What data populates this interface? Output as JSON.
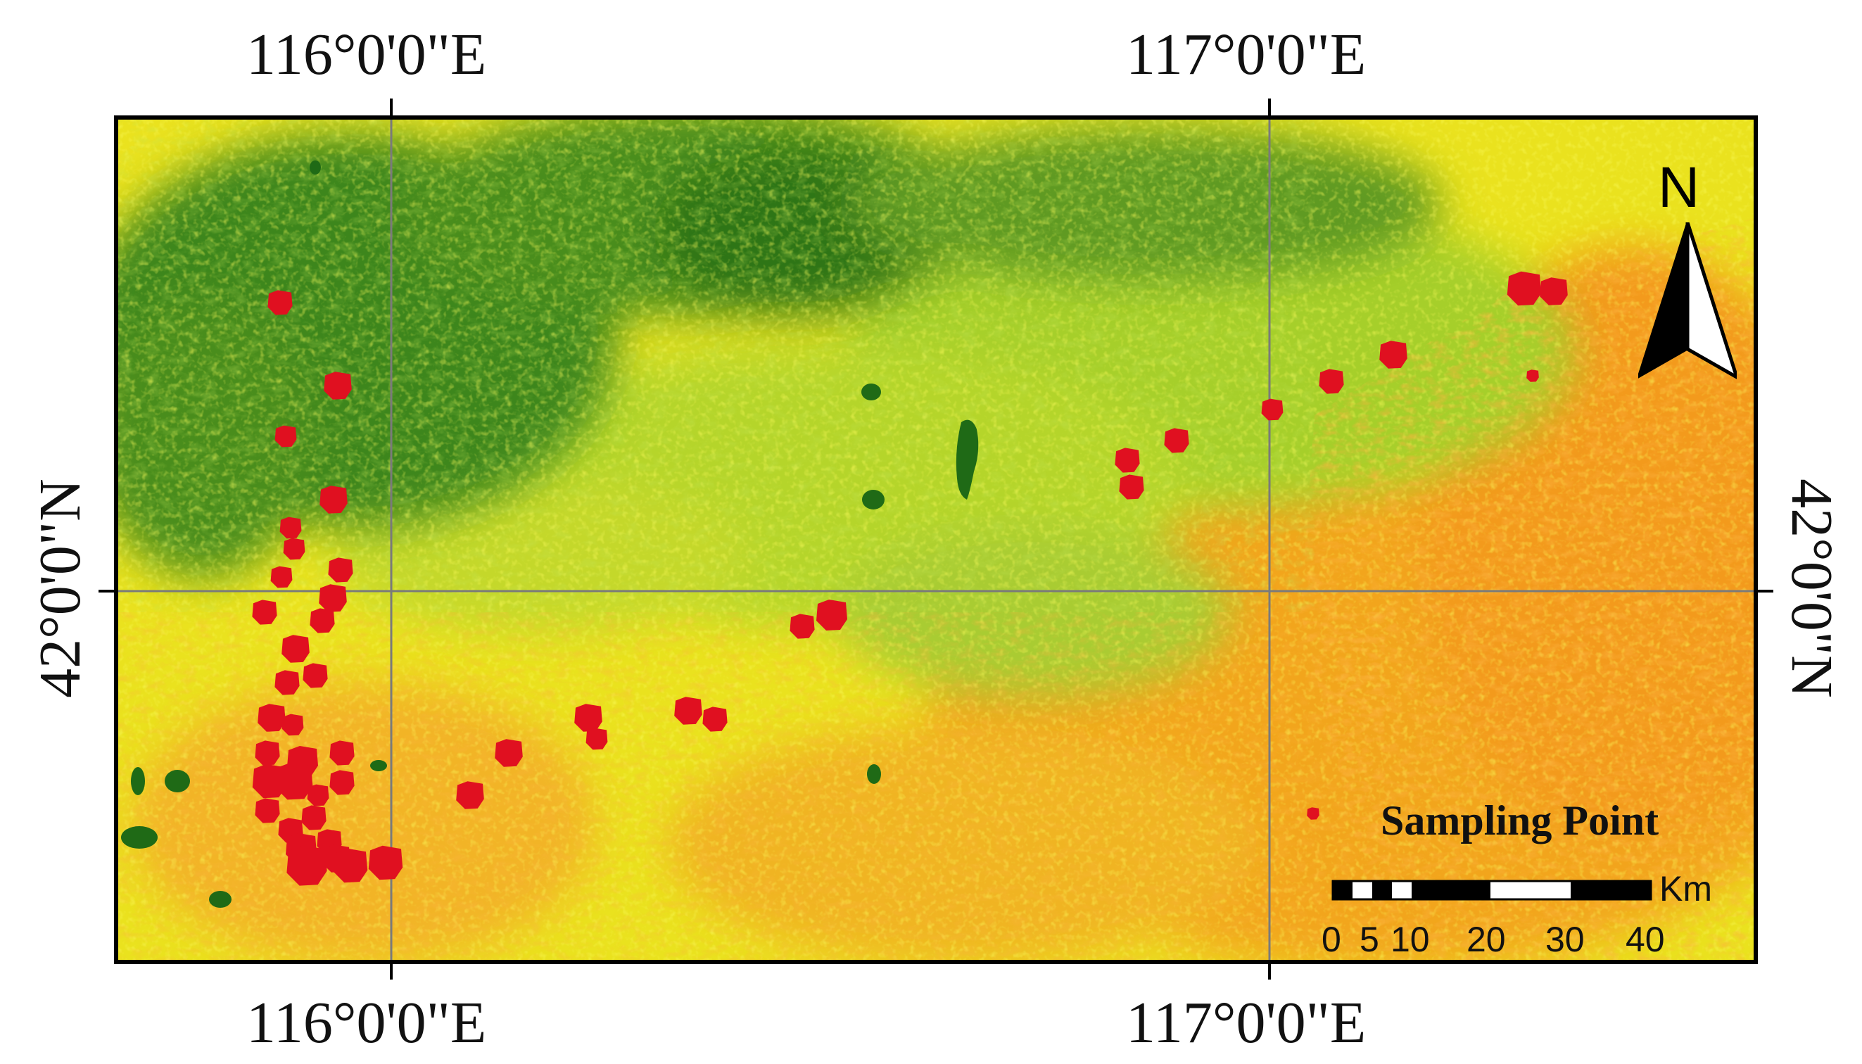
{
  "longitude_labels": {
    "top": [
      "116°0'0\"E",
      "117°0'0\"E"
    ],
    "bottom": [
      "116°0'0\"E",
      "117°0'0\"E"
    ]
  },
  "latitude_labels": {
    "left": "42°0'0\"N",
    "right": "42°0'0\"N"
  },
  "north_arrow": {
    "label": "N",
    "icon": "north-arrow-icon"
  },
  "legend": {
    "title": "Sampling Point",
    "unit": "Km",
    "scale_ticks": [
      "0",
      "5",
      "10",
      "20",
      "30",
      "40"
    ]
  },
  "colors": {
    "sampling_point": "#e01020",
    "dense_vegetation": "#2f7d1a",
    "moderate_vegetation": "#9ccc28",
    "sparse": "#f2ea1a",
    "bare": "#f0a020"
  }
}
